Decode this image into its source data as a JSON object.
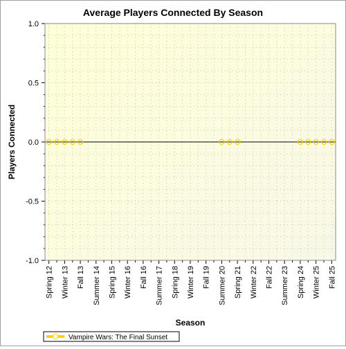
{
  "chart_data": {
    "type": "line",
    "title": "Average Players Connected By Season",
    "xlabel": "Season",
    "ylabel": "Players Connected",
    "ylim": [
      -1.0,
      1.0
    ],
    "y_ticks": [
      "1.0",
      "0.5",
      "0.0",
      "-0.5",
      "-1.0"
    ],
    "y_tick_values": [
      1.0,
      0.5,
      0.0,
      -0.5,
      -1.0
    ],
    "grid": true,
    "legend_position": "bottom-left",
    "background_gradient": [
      "#ffffd8",
      "#f8f8e8"
    ],
    "categories": [
      "Spring 12",
      "",
      "Winter 13",
      "",
      "Fall 13",
      "",
      "Summer 14",
      "",
      "Spring 15",
      "",
      "Winter 16",
      "",
      "Fall 16",
      "",
      "Summer 17",
      "",
      "Spring 18",
      "",
      "Winter 19",
      "",
      "Fall 19",
      "",
      "Summer 20",
      "",
      "Spring 21",
      "",
      "Winter 22",
      "",
      "Fall 22",
      "",
      "Summer 23",
      "",
      "Spring 24",
      "",
      "Winter 25",
      "",
      "Fall 25"
    ],
    "x_labels": [
      "Spring 12",
      "Winter 13",
      "Fall 13",
      "Summer 14",
      "Spring 15",
      "Winter 16",
      "Fall 16",
      "Summer 17",
      "Spring 18",
      "Winter 19",
      "Fall 19",
      "Summer 20",
      "Spring 21",
      "Winter 22",
      "Fall 22",
      "Summer 23",
      "Spring 24",
      "Winter 25",
      "Fall 25"
    ],
    "series": [
      {
        "name": "Vampire Wars: The Final Sunset",
        "color": "#ffd400",
        "points": [
          {
            "x": 0,
            "y": 0
          },
          {
            "x": 1,
            "y": 0
          },
          {
            "x": 2,
            "y": 0
          },
          {
            "x": 3,
            "y": 0
          },
          {
            "x": 4,
            "y": 0
          },
          {
            "x": 22,
            "y": 0
          },
          {
            "x": 23,
            "y": 0
          },
          {
            "x": 24,
            "y": 0
          },
          {
            "x": 32,
            "y": 0
          },
          {
            "x": 33,
            "y": 0
          },
          {
            "x": 34,
            "y": 0
          },
          {
            "x": 35,
            "y": 0
          },
          {
            "x": 36,
            "y": 0
          }
        ]
      }
    ]
  }
}
